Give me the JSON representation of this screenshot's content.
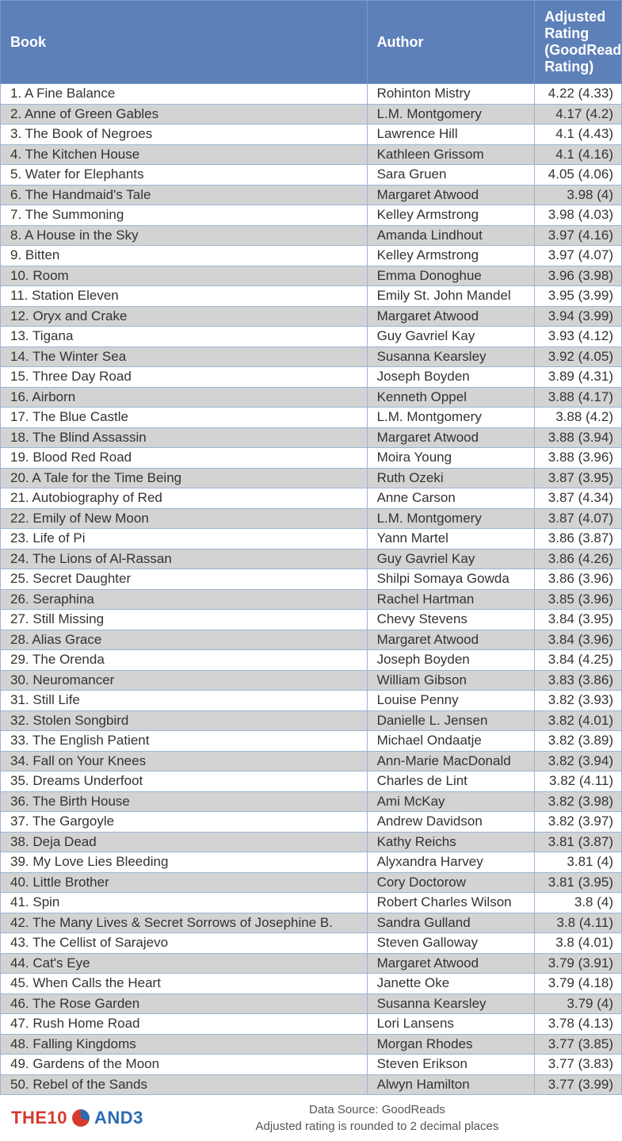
{
  "table": {
    "header_bg": "#5e80b9",
    "header_fg": "#ffffff",
    "row_odd_bg": "#ffffff",
    "row_even_bg": "#d3d3d3",
    "border_color": "#9cb3d6",
    "columns": [
      {
        "label": "Book",
        "align": "left"
      },
      {
        "label": "Author",
        "align": "left"
      },
      {
        "label": "Adjusted Rating (GoodReads Rating)",
        "align": "right"
      }
    ],
    "rows": [
      {
        "n": 1,
        "title": "A Fine Balance",
        "author": "Rohinton Mistry",
        "adj": "4.22",
        "gr": "4.33"
      },
      {
        "n": 2,
        "title": "Anne of Green Gables",
        "author": "L.M. Montgomery",
        "adj": "4.17",
        "gr": "4.2"
      },
      {
        "n": 3,
        "title": "The Book of Negroes",
        "author": "Lawrence Hill",
        "adj": "4.1",
        "gr": "4.43"
      },
      {
        "n": 4,
        "title": "The Kitchen House",
        "author": "Kathleen Grissom",
        "adj": "4.1",
        "gr": "4.16"
      },
      {
        "n": 5,
        "title": "Water for Elephants",
        "author": "Sara Gruen",
        "adj": "4.05",
        "gr": "4.06"
      },
      {
        "n": 6,
        "title": "The Handmaid's Tale",
        "author": "Margaret Atwood",
        "adj": "3.98",
        "gr": "4"
      },
      {
        "n": 7,
        "title": "The Summoning",
        "author": "Kelley Armstrong",
        "adj": "3.98",
        "gr": "4.03"
      },
      {
        "n": 8,
        "title": "A House in the Sky",
        "author": "Amanda Lindhout",
        "adj": "3.97",
        "gr": "4.16"
      },
      {
        "n": 9,
        "title": "Bitten",
        "author": "Kelley Armstrong",
        "adj": "3.97",
        "gr": "4.07"
      },
      {
        "n": 10,
        "title": "Room",
        "author": "Emma Donoghue",
        "adj": "3.96",
        "gr": "3.98"
      },
      {
        "n": 11,
        "title": "Station Eleven",
        "author": "Emily St. John Mandel",
        "adj": "3.95",
        "gr": "3.99"
      },
      {
        "n": 12,
        "title": "Oryx and Crake",
        "author": "Margaret Atwood",
        "adj": "3.94",
        "gr": "3.99"
      },
      {
        "n": 13,
        "title": "Tigana",
        "author": "Guy Gavriel Kay",
        "adj": "3.93",
        "gr": "4.12"
      },
      {
        "n": 14,
        "title": "The Winter Sea",
        "author": "Susanna Kearsley",
        "adj": "3.92",
        "gr": "4.05"
      },
      {
        "n": 15,
        "title": "Three Day Road",
        "author": "Joseph Boyden",
        "adj": "3.89",
        "gr": "4.31"
      },
      {
        "n": 16,
        "title": "Airborn",
        "author": "Kenneth Oppel",
        "adj": "3.88",
        "gr": "4.17"
      },
      {
        "n": 17,
        "title": "The Blue Castle",
        "author": "L.M. Montgomery",
        "adj": "3.88",
        "gr": "4.2"
      },
      {
        "n": 18,
        "title": "The Blind Assassin",
        "author": "Margaret Atwood",
        "adj": "3.88",
        "gr": "3.94"
      },
      {
        "n": 19,
        "title": "Blood Red Road",
        "author": "Moira Young",
        "adj": "3.88",
        "gr": "3.96"
      },
      {
        "n": 20,
        "title": "A Tale for the Time Being",
        "author": "Ruth Ozeki",
        "adj": "3.87",
        "gr": "3.95"
      },
      {
        "n": 21,
        "title": "Autobiography of Red",
        "author": "Anne Carson",
        "adj": "3.87",
        "gr": "4.34"
      },
      {
        "n": 22,
        "title": "Emily of New Moon",
        "author": "L.M. Montgomery",
        "adj": "3.87",
        "gr": "4.07"
      },
      {
        "n": 23,
        "title": "Life of Pi",
        "author": "Yann Martel",
        "adj": "3.86",
        "gr": "3.87"
      },
      {
        "n": 24,
        "title": "The Lions of Al-Rassan",
        "author": "Guy Gavriel Kay",
        "adj": "3.86",
        "gr": "4.26"
      },
      {
        "n": 25,
        "title": "Secret Daughter",
        "author": "Shilpi Somaya Gowda",
        "adj": "3.86",
        "gr": "3.96"
      },
      {
        "n": 26,
        "title": "Seraphina",
        "author": "Rachel Hartman",
        "adj": "3.85",
        "gr": "3.96"
      },
      {
        "n": 27,
        "title": "Still Missing",
        "author": "Chevy Stevens",
        "adj": "3.84",
        "gr": "3.95"
      },
      {
        "n": 28,
        "title": "Alias Grace",
        "author": "Margaret Atwood",
        "adj": "3.84",
        "gr": "3.96"
      },
      {
        "n": 29,
        "title": "The Orenda",
        "author": "Joseph Boyden",
        "adj": "3.84",
        "gr": "4.25"
      },
      {
        "n": 30,
        "title": "Neuromancer",
        "author": "William Gibson",
        "adj": "3.83",
        "gr": "3.86"
      },
      {
        "n": 31,
        "title": "Still Life",
        "author": "Louise Penny",
        "adj": "3.82",
        "gr": "3.93"
      },
      {
        "n": 32,
        "title": "Stolen Songbird",
        "author": "Danielle L. Jensen",
        "adj": "3.82",
        "gr": "4.01"
      },
      {
        "n": 33,
        "title": "The English Patient",
        "author": "Michael Ondaatje",
        "adj": "3.82",
        "gr": "3.89"
      },
      {
        "n": 34,
        "title": "Fall on Your Knees",
        "author": "Ann-Marie MacDonald",
        "adj": "3.82",
        "gr": "3.94"
      },
      {
        "n": 35,
        "title": "Dreams Underfoot",
        "author": "Charles de Lint",
        "adj": "3.82",
        "gr": "4.11"
      },
      {
        "n": 36,
        "title": "The Birth House",
        "author": "Ami McKay",
        "adj": "3.82",
        "gr": "3.98"
      },
      {
        "n": 37,
        "title": "The Gargoyle",
        "author": "Andrew Davidson",
        "adj": "3.82",
        "gr": "3.97"
      },
      {
        "n": 38,
        "title": "Deja Dead",
        "author": "Kathy Reichs",
        "adj": "3.81",
        "gr": "3.87"
      },
      {
        "n": 39,
        "title": "My Love Lies Bleeding",
        "author": "Alyxandra Harvey",
        "adj": "3.81",
        "gr": "4"
      },
      {
        "n": 40,
        "title": "Little Brother",
        "author": "Cory Doctorow",
        "adj": "3.81",
        "gr": "3.95"
      },
      {
        "n": 41,
        "title": "Spin",
        "author": "Robert Charles Wilson",
        "adj": "3.8",
        "gr": "4"
      },
      {
        "n": 42,
        "title": "The Many Lives & Secret Sorrows of Josephine B.",
        "author": "Sandra Gulland",
        "adj": "3.8",
        "gr": "4.11"
      },
      {
        "n": 43,
        "title": "The Cellist of Sarajevo",
        "author": "Steven Galloway",
        "adj": "3.8",
        "gr": "4.01"
      },
      {
        "n": 44,
        "title": "Cat's Eye",
        "author": "Margaret Atwood",
        "adj": "3.79",
        "gr": "3.91"
      },
      {
        "n": 45,
        "title": "When Calls the Heart",
        "author": "Janette Oke",
        "adj": "3.79",
        "gr": "4.18"
      },
      {
        "n": 46,
        "title": "The Rose Garden",
        "author": "Susanna Kearsley",
        "adj": "3.79",
        "gr": "4"
      },
      {
        "n": 47,
        "title": "Rush Home Road",
        "author": "Lori Lansens",
        "adj": "3.78",
        "gr": "4.13"
      },
      {
        "n": 48,
        "title": "Falling Kingdoms",
        "author": "Morgan Rhodes",
        "adj": "3.77",
        "gr": "3.85"
      },
      {
        "n": 49,
        "title": "Gardens of the Moon",
        "author": "Steven Erikson",
        "adj": "3.77",
        "gr": "3.83"
      },
      {
        "n": 50,
        "title": "Rebel of the Sands",
        "author": "Alwyn Hamilton",
        "adj": "3.77",
        "gr": "3.99"
      }
    ]
  },
  "footer": {
    "logo_the10": "THE10",
    "logo_and3": "AND3",
    "note1": "Data Source: GoodReads",
    "note2": "Adjusted rating is rounded to 2 decimal places",
    "pie_color_a": "#2a6bb3",
    "pie_color_b": "#d63a2f"
  }
}
